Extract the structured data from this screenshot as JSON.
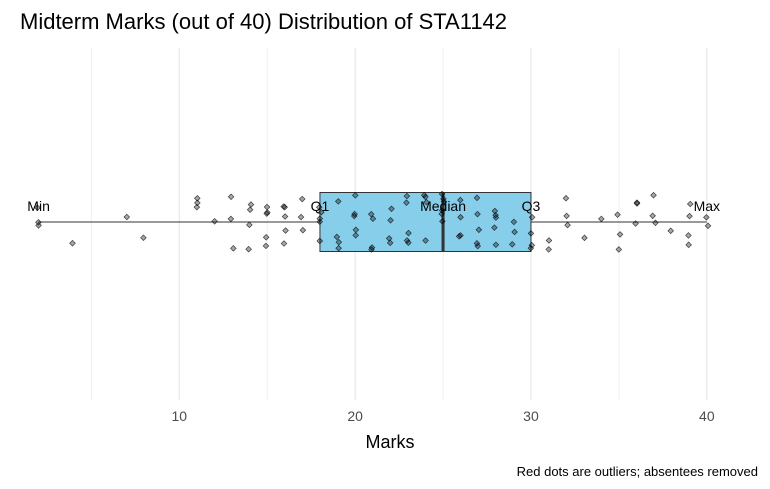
{
  "chart_data": {
    "type": "boxplot",
    "title": "Midterm Marks (out of 40) Distribution of STA1142",
    "xlabel": "Marks",
    "caption": "Red dots are outliers; absentees removed",
    "xlim": [
      1,
      42
    ],
    "x_ticks": [
      10,
      20,
      30,
      40
    ],
    "grid": "vertical",
    "box": {
      "min": 2,
      "q1": 18,
      "median": 25,
      "q3": 30,
      "max": 40,
      "fill": "#87CEEB",
      "stroke": "#333333"
    },
    "annotations": [
      {
        "label": "Min",
        "x": 2
      },
      {
        "label": "Q1",
        "x": 18
      },
      {
        "label": "Median",
        "x": 25
      },
      {
        "label": "Q3",
        "x": 30
      },
      {
        "label": "Max",
        "x": 40
      }
    ],
    "points": [
      2,
      2,
      2,
      4,
      7,
      8,
      11,
      11,
      11,
      12,
      13,
      13,
      13,
      14,
      14,
      14,
      14,
      15,
      15,
      15,
      15,
      15,
      16,
      16,
      16,
      16,
      16,
      17,
      17,
      17,
      18,
      18,
      18,
      18,
      18,
      19,
      19,
      19,
      19,
      20,
      20,
      20,
      20,
      20,
      21,
      21,
      21,
      21,
      22,
      22,
      22,
      22,
      23,
      23,
      23,
      23,
      23,
      24,
      24,
      24,
      24,
      25,
      25,
      25,
      25,
      25,
      25,
      26,
      26,
      26,
      26,
      27,
      27,
      27,
      27,
      27,
      28,
      28,
      28,
      28,
      28,
      29,
      29,
      29,
      30,
      30,
      30,
      30,
      31,
      31,
      32,
      32,
      32,
      33,
      34,
      35,
      35,
      35,
      36,
      36,
      36,
      37,
      37,
      37,
      38,
      39,
      39,
      39,
      39,
      40,
      40
    ],
    "point_color": "#000000"
  }
}
